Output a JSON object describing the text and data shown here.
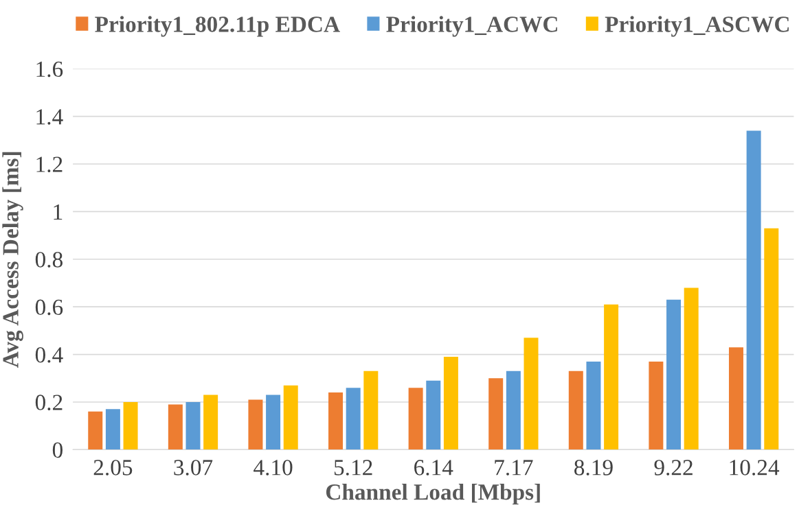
{
  "chart_data": {
    "type": "bar",
    "xlabel": "Channel Load [Mbps]",
    "ylabel": "Avg Access Delay [ms]",
    "categories": [
      "2.05",
      "3.07",
      "4.10",
      "5.12",
      "6.14",
      "7.17",
      "8.19",
      "9.22",
      "10.24"
    ],
    "series": [
      {
        "name": "Priority1_802.11p EDCA",
        "color": "#ed7d31",
        "values": [
          0.16,
          0.19,
          0.21,
          0.24,
          0.26,
          0.3,
          0.33,
          0.37,
          0.43
        ]
      },
      {
        "name": "Priority1_ACWC",
        "color": "#5b9bd5",
        "values": [
          0.17,
          0.2,
          0.23,
          0.26,
          0.29,
          0.33,
          0.37,
          0.63,
          1.34
        ]
      },
      {
        "name": "Priority1_ASCWC",
        "color": "#ffc000",
        "values": [
          0.2,
          0.23,
          0.27,
          0.33,
          0.39,
          0.47,
          0.61,
          0.68,
          0.93
        ]
      }
    ],
    "ylim": [
      0,
      1.6
    ],
    "yticks": [
      0,
      0.2,
      0.4,
      0.6,
      0.8,
      1,
      1.2,
      1.4,
      1.6
    ],
    "grid": "y",
    "legend": "top"
  }
}
